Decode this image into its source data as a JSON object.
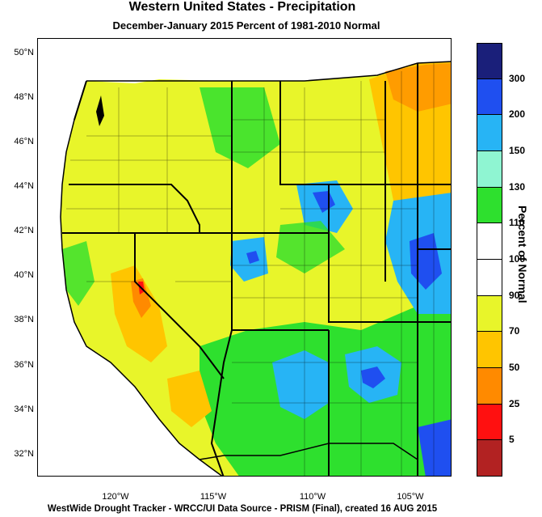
{
  "title": "Western United States - Precipitation",
  "subtitle": "December-January 2015  Percent of 1981-2010 Normal",
  "footer": "WestWide Drought Tracker - WRCC/UI  Data Source - PRISM (Final), created 16 AUG 2015",
  "latitude_labels": [
    "50°N",
    "48°N",
    "46°N",
    "44°N",
    "42°N",
    "40°N",
    "38°N",
    "36°N",
    "34°N",
    "32°N"
  ],
  "longitude_labels": [
    "120°W",
    "115°W",
    "110°W",
    "105°W"
  ],
  "legend": {
    "title": "Percent of Normal",
    "bins": [
      {
        "color": "#1a1f7a"
      },
      {
        "color": "#1f4ff0"
      },
      {
        "color": "#27b4f5"
      },
      {
        "color": "#8ff5d2"
      },
      {
        "color": "#2ee02e"
      },
      {
        "color": "#ffffff"
      },
      {
        "color": "#ffffff"
      },
      {
        "color": "#e8f52a"
      },
      {
        "color": "#ffc500"
      },
      {
        "color": "#ff8a00"
      },
      {
        "color": "#ff1010"
      },
      {
        "color": "#b22222"
      }
    ],
    "tick_labels": [
      "300",
      "200",
      "150",
      "130",
      "110",
      "100",
      "90",
      "70",
      "50",
      "25",
      "5"
    ]
  }
}
